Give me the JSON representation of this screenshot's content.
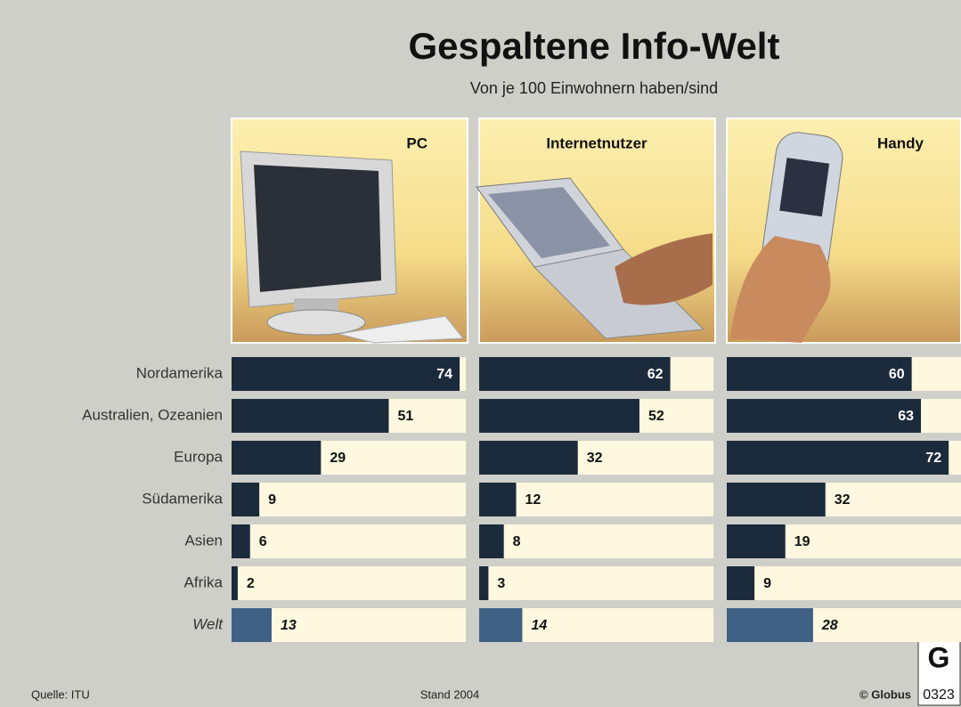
{
  "title": "Gespaltene Info-Welt",
  "subtitle": "Von je 100 Einwohnern haben/sind",
  "source": "Quelle: ITU",
  "date": "Stand 2004",
  "credit": "© Globus",
  "logo": "G",
  "code": "0323",
  "chart_data": {
    "type": "bar",
    "orientation": "horizontal",
    "layout": "panels",
    "categories": [
      "Nordamerika",
      "Australien, Ozeanien",
      "Europa",
      "Südamerika",
      "Asien",
      "Afrika",
      "Welt"
    ],
    "xlim": [
      0,
      76
    ],
    "highlight_index": 6,
    "highlight_color": "#3f6185",
    "series": [
      {
        "name": "PC",
        "color": "#1c2b3c",
        "values": [
          74,
          51,
          29,
          9,
          6,
          2,
          13
        ]
      },
      {
        "name": "Internetnutzer",
        "color": "#1c2b3c",
        "values": [
          62,
          52,
          32,
          12,
          8,
          3,
          14
        ]
      },
      {
        "name": "Handy",
        "color": "#1c2b3c",
        "values": [
          60,
          63,
          72,
          32,
          19,
          9,
          28
        ]
      }
    ]
  }
}
